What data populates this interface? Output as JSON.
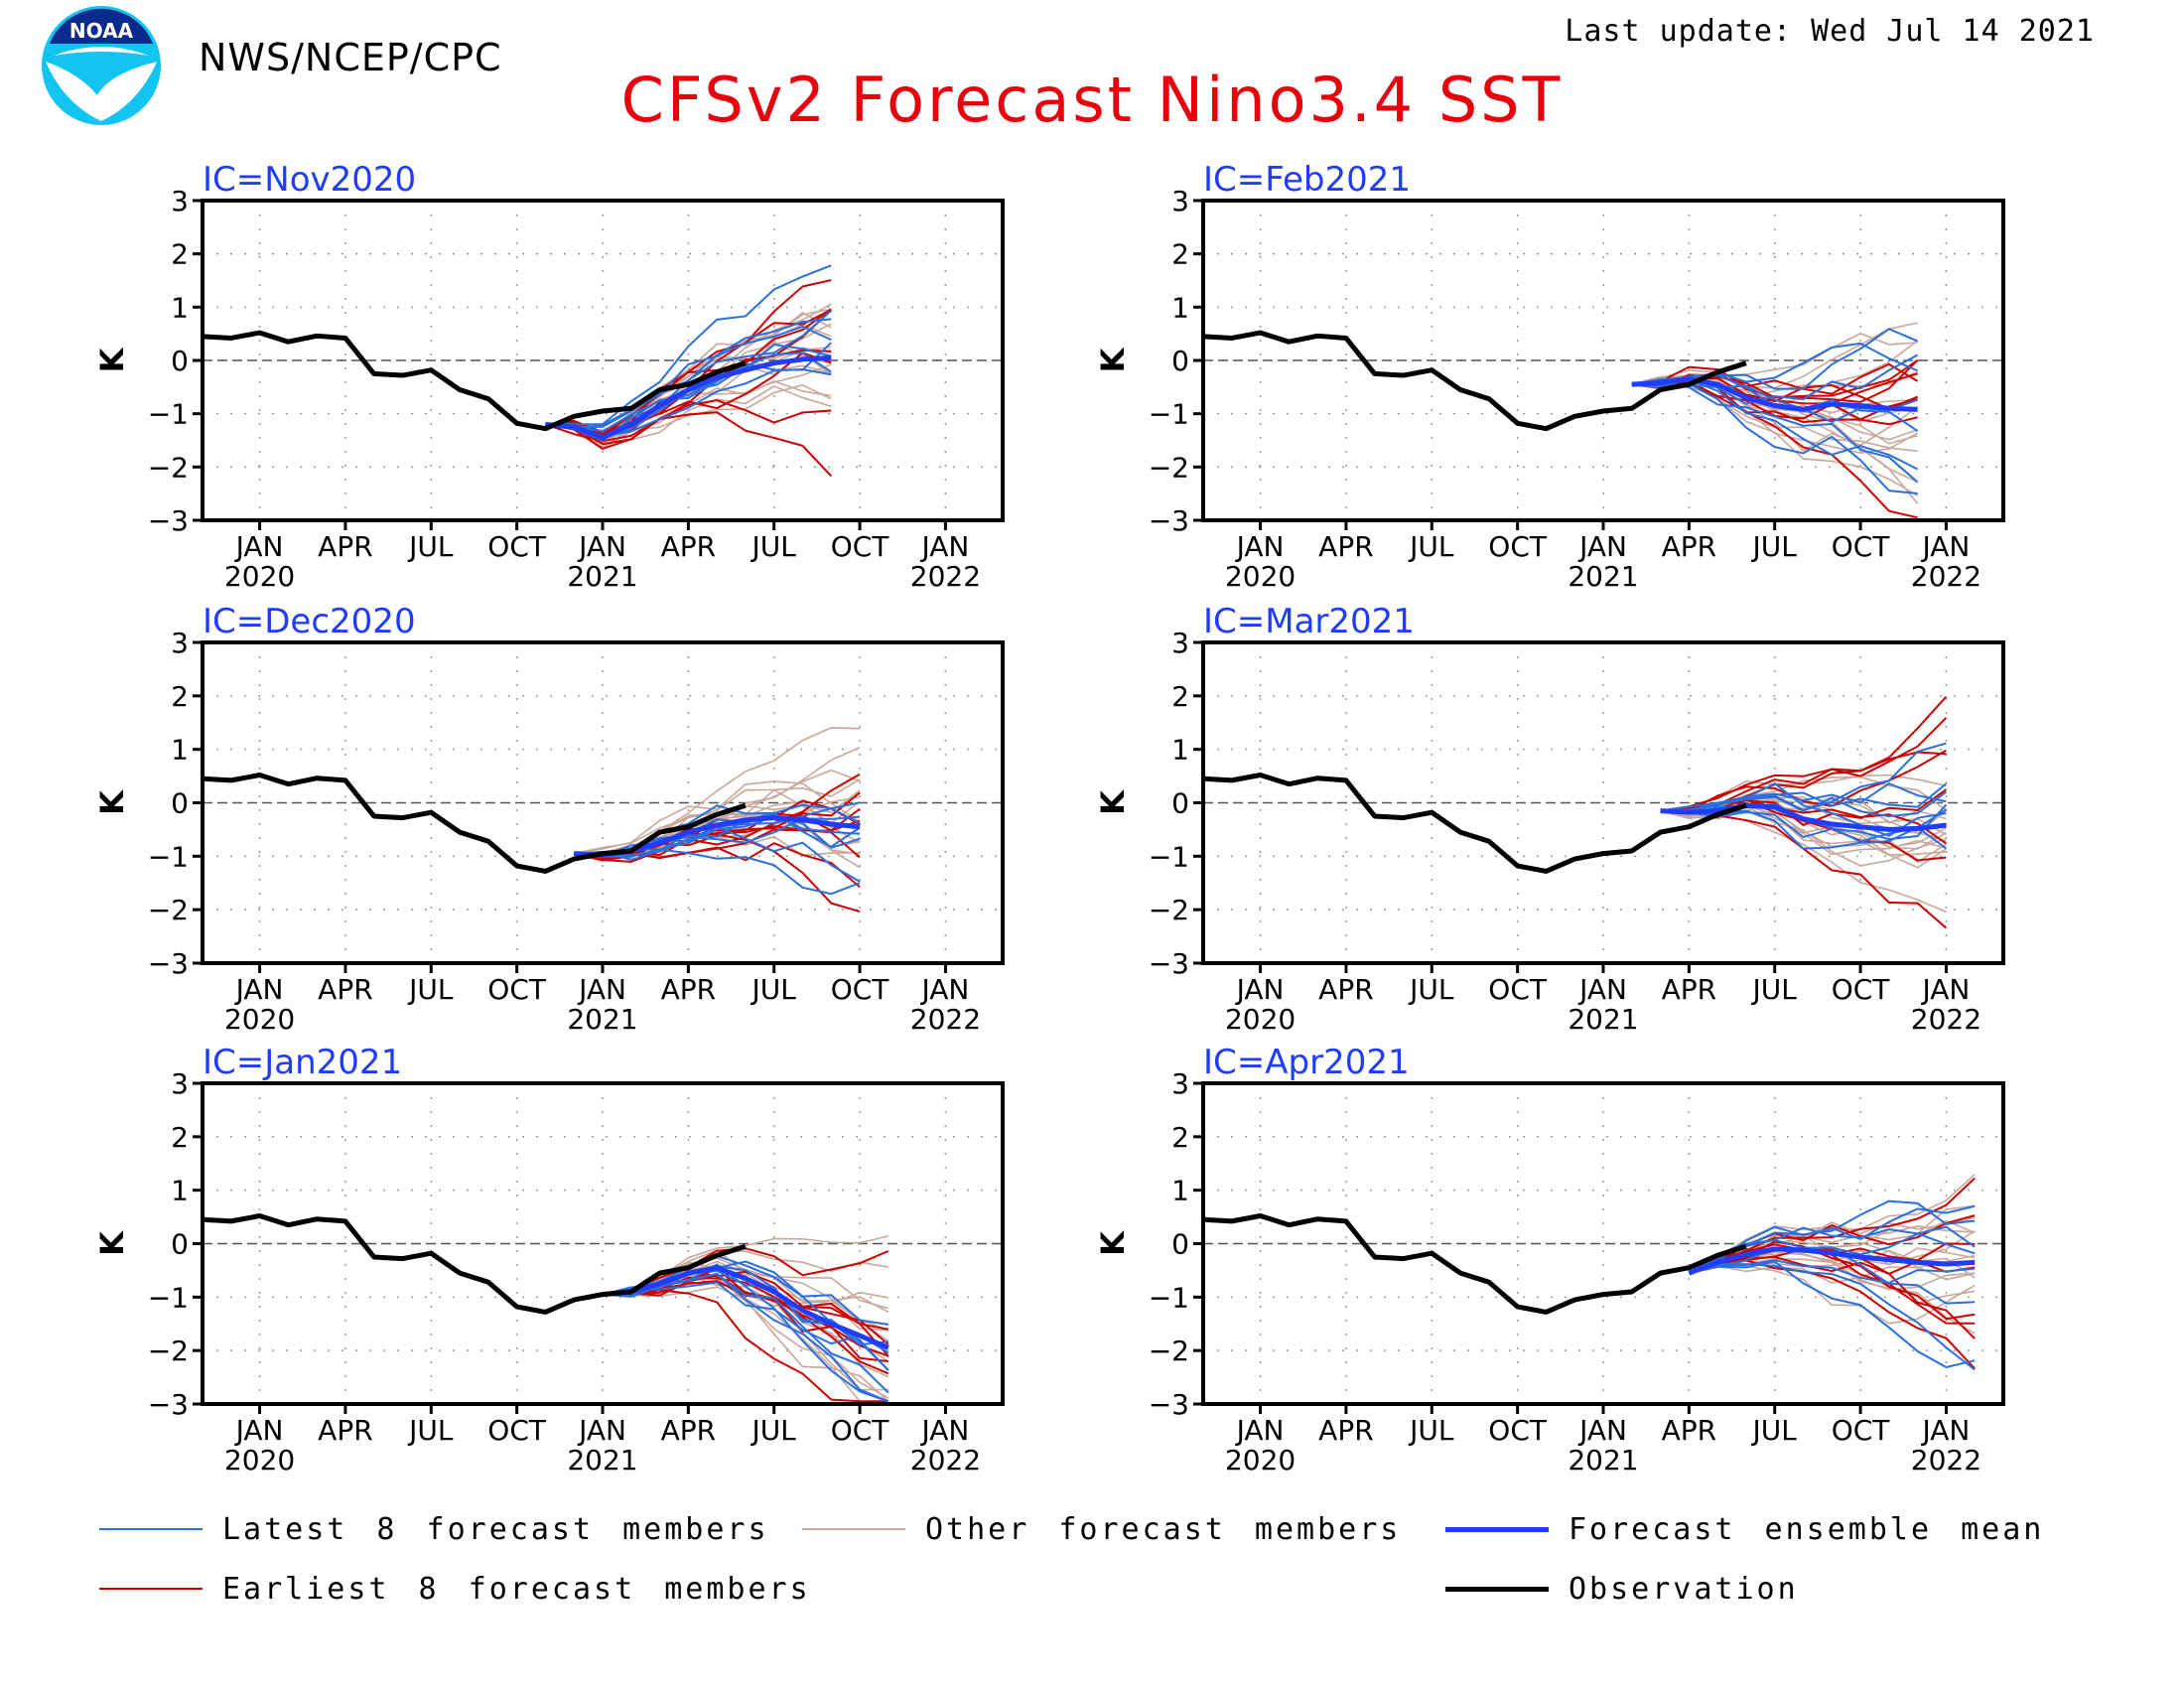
{
  "header": {
    "org": "NWS/NCEP/CPC",
    "last_update": "Last update: Wed Jul 14 2021",
    "title": "CFSv2 Forecast Nino3.4 SST",
    "logo_text": "NOAA"
  },
  "colors": {
    "title": "#e8000b",
    "panel_title": "#1f3cff",
    "latest": "#2a6fe0",
    "earliest": "#cc0000",
    "other": "#c9a79a",
    "mean": "#1f3cff",
    "observation": "#000000"
  },
  "legend": [
    {
      "key": "latest",
      "label": "Latest 8 forecast members",
      "color": "#2a6fe0",
      "width": 2
    },
    {
      "key": "other",
      "label": "Other forecast members",
      "color": "#c9a79a",
      "width": 2
    },
    {
      "key": "mean",
      "label": "Forecast ensemble mean",
      "color": "#1f3cff",
      "width": 5
    },
    {
      "key": "earliest",
      "label": "Earliest 8 forecast members",
      "color": "#cc0000",
      "width": 2
    },
    {
      "key": "observation",
      "label": "Observation",
      "color": "#000000",
      "width": 5
    }
  ],
  "chart_data": [
    {
      "type": "line",
      "title": "IC=Nov2020",
      "ylabel": "K",
      "ylim": [
        -3,
        3
      ],
      "yticks": [
        "3",
        "2",
        "1",
        "0",
        "−1",
        "−2",
        "−3"
      ],
      "xticks": [
        {
          "top": "JAN",
          "bottom": "2020"
        },
        {
          "top": "APR",
          "bottom": ""
        },
        {
          "top": "JUL",
          "bottom": ""
        },
        {
          "top": "OCT",
          "bottom": ""
        },
        {
          "top": "JAN",
          "bottom": "2021"
        },
        {
          "top": "APR",
          "bottom": ""
        },
        {
          "top": "JUL",
          "bottom": ""
        },
        {
          "top": "OCT",
          "bottom": ""
        },
        {
          "top": "JAN",
          "bottom": "2022"
        }
      ],
      "observation": {
        "start": "2019-11",
        "values": [
          0.45,
          0.42,
          0.52,
          0.35,
          0.46,
          0.42,
          -0.25,
          -0.28,
          -0.18,
          -0.55,
          -0.72,
          -1.18,
          -1.28,
          -1.05,
          -0.95,
          -0.9,
          -0.55,
          -0.45,
          -0.22,
          -0.05
        ]
      },
      "ensemble_mean": {
        "start": "2020-11",
        "values": [
          -1.2,
          -1.25,
          -1.45,
          -1.2,
          -0.85,
          -0.55,
          -0.32,
          -0.18,
          -0.05,
          0.02,
          0.05
        ]
      },
      "grid": true
    },
    {
      "type": "line",
      "title": "IC=Feb2021",
      "ylabel": "K",
      "ylim": [
        -3,
        3
      ],
      "yticks": [
        "3",
        "2",
        "1",
        "0",
        "−1",
        "−2",
        "−3"
      ],
      "xticks": [
        {
          "top": "JAN",
          "bottom": "2020"
        },
        {
          "top": "APR",
          "bottom": ""
        },
        {
          "top": "JUL",
          "bottom": ""
        },
        {
          "top": "OCT",
          "bottom": ""
        },
        {
          "top": "JAN",
          "bottom": "2021"
        },
        {
          "top": "APR",
          "bottom": ""
        },
        {
          "top": "JUL",
          "bottom": ""
        },
        {
          "top": "OCT",
          "bottom": ""
        },
        {
          "top": "JAN",
          "bottom": "2022"
        }
      ],
      "observation": {
        "start": "2019-11",
        "values": [
          0.45,
          0.42,
          0.52,
          0.35,
          0.46,
          0.42,
          -0.25,
          -0.28,
          -0.18,
          -0.55,
          -0.72,
          -1.18,
          -1.28,
          -1.05,
          -0.95,
          -0.9,
          -0.55,
          -0.45,
          -0.22,
          -0.05
        ]
      },
      "ensemble_mean": {
        "start": "2021-02",
        "values": [
          -0.45,
          -0.42,
          -0.35,
          -0.45,
          -0.7,
          -0.85,
          -0.92,
          -0.82,
          -0.85,
          -0.9,
          -0.92
        ]
      },
      "grid": true
    },
    {
      "type": "line",
      "title": "IC=Dec2020",
      "ylabel": "K",
      "ylim": [
        -3,
        3
      ],
      "yticks": [
        "3",
        "2",
        "1",
        "0",
        "−1",
        "−2",
        "−3"
      ],
      "xticks": [
        {
          "top": "JAN",
          "bottom": "2020"
        },
        {
          "top": "APR",
          "bottom": ""
        },
        {
          "top": "JUL",
          "bottom": ""
        },
        {
          "top": "OCT",
          "bottom": ""
        },
        {
          "top": "JAN",
          "bottom": "2021"
        },
        {
          "top": "APR",
          "bottom": ""
        },
        {
          "top": "JUL",
          "bottom": ""
        },
        {
          "top": "OCT",
          "bottom": ""
        },
        {
          "top": "JAN",
          "bottom": "2022"
        }
      ],
      "observation": {
        "start": "2019-11",
        "values": [
          0.45,
          0.42,
          0.52,
          0.35,
          0.46,
          0.42,
          -0.25,
          -0.28,
          -0.18,
          -0.55,
          -0.72,
          -1.18,
          -1.28,
          -1.05,
          -0.95,
          -0.9,
          -0.55,
          -0.45,
          -0.22,
          -0.05
        ]
      },
      "ensemble_mean": {
        "start": "2020-12",
        "values": [
          -0.95,
          -0.98,
          -0.9,
          -0.75,
          -0.55,
          -0.42,
          -0.32,
          -0.28,
          -0.32,
          -0.4,
          -0.45
        ]
      },
      "grid": true
    },
    {
      "type": "line",
      "title": "IC=Mar2021",
      "ylabel": "K",
      "ylim": [
        -3,
        3
      ],
      "yticks": [
        "3",
        "2",
        "1",
        "0",
        "−1",
        "−2",
        "−3"
      ],
      "xticks": [
        {
          "top": "JAN",
          "bottom": "2020"
        },
        {
          "top": "APR",
          "bottom": ""
        },
        {
          "top": "JUL",
          "bottom": ""
        },
        {
          "top": "OCT",
          "bottom": ""
        },
        {
          "top": "JAN",
          "bottom": "2021"
        },
        {
          "top": "APR",
          "bottom": ""
        },
        {
          "top": "JUL",
          "bottom": ""
        },
        {
          "top": "OCT",
          "bottom": ""
        },
        {
          "top": "JAN",
          "bottom": "2022"
        }
      ],
      "observation": {
        "start": "2019-11",
        "values": [
          0.45,
          0.42,
          0.52,
          0.35,
          0.46,
          0.42,
          -0.25,
          -0.28,
          -0.18,
          -0.55,
          -0.72,
          -1.18,
          -1.28,
          -1.05,
          -0.95,
          -0.9,
          -0.55,
          -0.45,
          -0.22,
          -0.05
        ]
      },
      "ensemble_mean": {
        "start": "2021-03",
        "values": [
          -0.15,
          -0.18,
          -0.15,
          -0.05,
          -0.08,
          -0.3,
          -0.4,
          -0.45,
          -0.5,
          -0.48,
          -0.42
        ]
      },
      "grid": true
    },
    {
      "type": "line",
      "title": "IC=Jan2021",
      "ylabel": "K",
      "ylim": [
        -3,
        3
      ],
      "yticks": [
        "3",
        "2",
        "1",
        "0",
        "−1",
        "−2",
        "−3"
      ],
      "xticks": [
        {
          "top": "JAN",
          "bottom": "2020"
        },
        {
          "top": "APR",
          "bottom": ""
        },
        {
          "top": "JUL",
          "bottom": ""
        },
        {
          "top": "OCT",
          "bottom": ""
        },
        {
          "top": "JAN",
          "bottom": "2021"
        },
        {
          "top": "APR",
          "bottom": ""
        },
        {
          "top": "JUL",
          "bottom": ""
        },
        {
          "top": "OCT",
          "bottom": ""
        },
        {
          "top": "JAN",
          "bottom": "2022"
        }
      ],
      "observation": {
        "start": "2019-11",
        "values": [
          0.45,
          0.42,
          0.52,
          0.35,
          0.46,
          0.42,
          -0.25,
          -0.28,
          -0.18,
          -0.55,
          -0.72,
          -1.18,
          -1.28,
          -1.05,
          -0.95,
          -0.9,
          -0.55,
          -0.45,
          -0.22,
          -0.05
        ]
      },
      "ensemble_mean": {
        "start": "2021-01",
        "values": [
          -0.95,
          -0.9,
          -0.75,
          -0.55,
          -0.45,
          -0.65,
          -0.9,
          -1.25,
          -1.5,
          -1.72,
          -1.95
        ]
      },
      "grid": true
    },
    {
      "type": "line",
      "title": "IC=Apr2021",
      "ylabel": "K",
      "ylim": [
        -3,
        3
      ],
      "yticks": [
        "3",
        "2",
        "1",
        "0",
        "−1",
        "−2",
        "−3"
      ],
      "xticks": [
        {
          "top": "JAN",
          "bottom": "2020"
        },
        {
          "top": "APR",
          "bottom": ""
        },
        {
          "top": "JUL",
          "bottom": ""
        },
        {
          "top": "OCT",
          "bottom": ""
        },
        {
          "top": "JAN",
          "bottom": "2021"
        },
        {
          "top": "APR",
          "bottom": ""
        },
        {
          "top": "JUL",
          "bottom": ""
        },
        {
          "top": "OCT",
          "bottom": ""
        },
        {
          "top": "JAN",
          "bottom": "2022"
        }
      ],
      "observation": {
        "start": "2019-11",
        "values": [
          0.45,
          0.42,
          0.52,
          0.35,
          0.46,
          0.42,
          -0.25,
          -0.28,
          -0.18,
          -0.55,
          -0.72,
          -1.18,
          -1.28,
          -1.05,
          -0.95,
          -0.9,
          -0.55,
          -0.45,
          -0.22,
          -0.05
        ]
      },
      "ensemble_mean": {
        "start": "2021-04",
        "values": [
          -0.55,
          -0.35,
          -0.2,
          -0.1,
          -0.12,
          -0.18,
          -0.25,
          -0.3,
          -0.35,
          -0.38,
          -0.35
        ]
      },
      "grid": true
    }
  ]
}
